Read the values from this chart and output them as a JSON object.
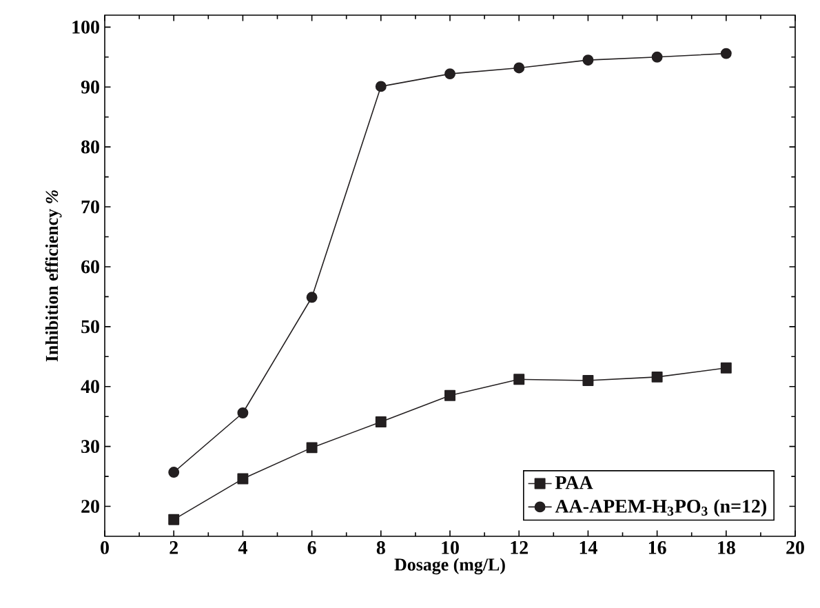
{
  "chart_data": {
    "type": "line",
    "xlabel": "Dosage (mg/L)",
    "ylabel": "Inhibition efficiency *%*",
    "x": [
      2,
      4,
      6,
      8,
      10,
      12,
      14,
      16,
      18
    ],
    "series": [
      {
        "name": "PAA",
        "color": "#231f20",
        "marker": "square",
        "values": [
          17.8,
          24.6,
          29.8,
          34.1,
          38.5,
          41.2,
          41.0,
          41.6,
          43.1
        ]
      },
      {
        "name": "AA-APEM-H$_{3}$PO$_{3}$ (n=12)",
        "color": "#231f20",
        "marker": "circle",
        "values": [
          25.7,
          35.6,
          54.9,
          90.1,
          92.2,
          93.2,
          94.5,
          95.0,
          95.6
        ]
      }
    ],
    "xlim": [
      0,
      20
    ],
    "ylim": [
      15,
      102
    ],
    "xticks": [
      0,
      2,
      4,
      6,
      8,
      10,
      12,
      14,
      16,
      18,
      20
    ],
    "yticks": [
      20,
      30,
      40,
      50,
      60,
      70,
      80,
      90,
      100
    ],
    "legend": "bottom right",
    "grid": false,
    "line_style": "solid"
  }
}
